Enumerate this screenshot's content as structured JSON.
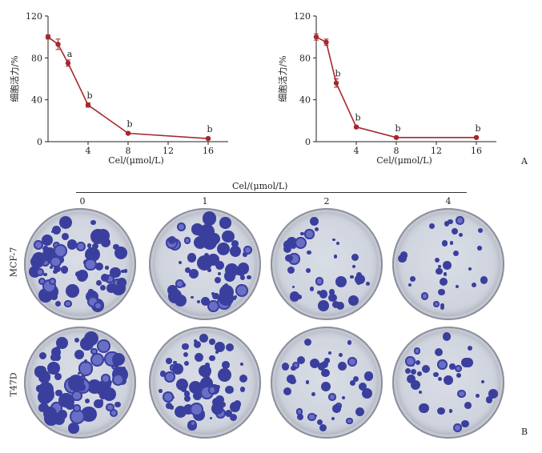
{
  "chart_data": [
    {
      "type": "line",
      "id": "chartA-left",
      "xlabel": "Cel/(μmol/L)",
      "ylabel": "细胞活力/%",
      "xlim": [
        0,
        18
      ],
      "ylim": [
        0,
        120
      ],
      "xticks": [
        4,
        8,
        12,
        16
      ],
      "xtick_labels": [
        "4",
        "8",
        "12",
        "16"
      ],
      "yticks": [
        0,
        40,
        80,
        120
      ],
      "ytick_labels": [
        "0",
        "40",
        "80",
        "120"
      ],
      "x": [
        0,
        1,
        2,
        4,
        8,
        16
      ],
      "y": [
        100,
        93,
        75,
        35,
        8,
        3
      ],
      "err": [
        2,
        5,
        3,
        2,
        1,
        1
      ],
      "annotations": [
        "",
        "",
        "a",
        "b",
        "b",
        "b"
      ],
      "color": "#a5282c"
    },
    {
      "type": "line",
      "id": "chartA-right",
      "xlabel": "Cel/(μmol/L)",
      "ylabel": "细胞活力/%",
      "xlim": [
        0,
        18
      ],
      "ylim": [
        0,
        120
      ],
      "xticks": [
        4,
        8,
        12,
        16
      ],
      "xtick_labels": [
        "4",
        "8",
        "12",
        "16"
      ],
      "yticks": [
        0,
        40,
        80,
        120
      ],
      "ytick_labels": [
        "0",
        "40",
        "80",
        "120"
      ],
      "x": [
        0,
        1,
        2,
        4,
        8,
        16
      ],
      "y": [
        100,
        95,
        56,
        14,
        4,
        4
      ],
      "err": [
        3,
        3,
        4,
        1,
        1,
        1
      ],
      "annotations": [
        "",
        "",
        "b",
        "b",
        "b",
        "b"
      ],
      "color": "#a5282c"
    }
  ],
  "panel_a_label": "A",
  "panel_b_label": "B",
  "panel_b": {
    "title": "Cel/(μmol/L)",
    "columns": [
      "0",
      "1",
      "2",
      "4"
    ],
    "rows": [
      "MCF-7",
      "T47D"
    ]
  }
}
